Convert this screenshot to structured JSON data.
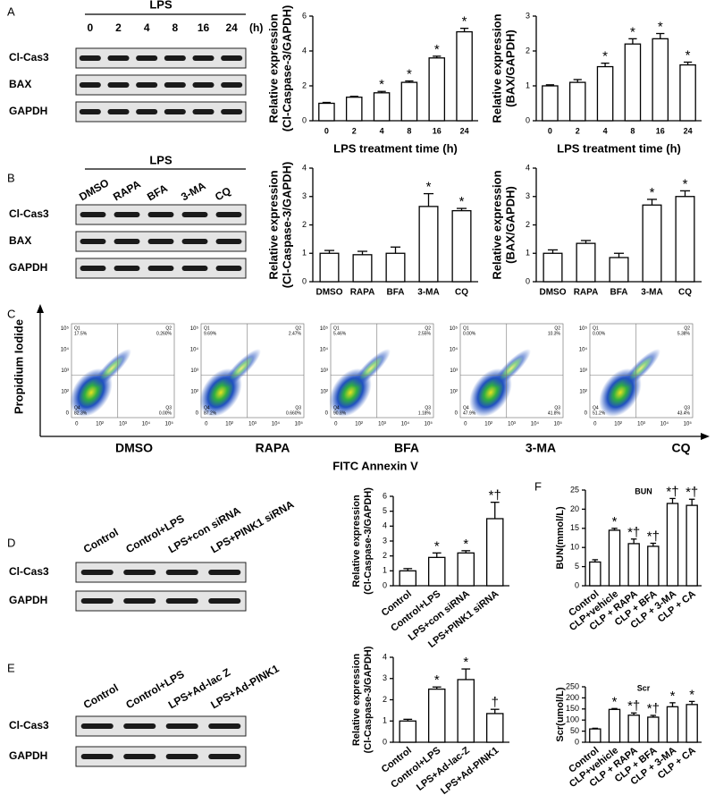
{
  "panels": [
    "A",
    "B",
    "C",
    "D",
    "E",
    "F"
  ],
  "chart_data": [
    {
      "type": "bar",
      "ylabel": [
        "Relative expression",
        "(Cl-Caspase-3/GAPDH)"
      ],
      "xlabel": "LPS treatment time (h)",
      "color": "#ffffff",
      "categories": [
        "0",
        "2",
        "4",
        "8",
        "16",
        "24"
      ],
      "values": [
        1.0,
        1.35,
        1.6,
        2.2,
        3.6,
        5.1
      ],
      "errors": [
        0.05,
        0.05,
        0.08,
        0.08,
        0.1,
        0.2
      ],
      "annotations": [
        null,
        null,
        "*",
        "*",
        "*",
        "*"
      ],
      "ylim": [
        0,
        6
      ],
      "yticks": [
        0,
        2,
        4,
        6
      ]
    },
    {
      "type": "bar",
      "ylabel": [
        "Relative expression",
        "(BAX/GAPDH)"
      ],
      "xlabel": "LPS treatment time (h)",
      "color": "#ffffff",
      "categories": [
        "0",
        "2",
        "4",
        "8",
        "16",
        "24"
      ],
      "values": [
        1.0,
        1.1,
        1.55,
        2.2,
        2.35,
        1.6
      ],
      "errors": [
        0.03,
        0.08,
        0.1,
        0.15,
        0.15,
        0.08
      ],
      "annotations": [
        null,
        null,
        "*",
        "*",
        "*",
        "*"
      ],
      "ylim": [
        0,
        3
      ],
      "yticks": [
        0,
        1,
        2,
        3
      ]
    },
    {
      "type": "bar",
      "ylabel": [
        "Relative expression",
        "(Cl-Caspase-3/GAPDH)"
      ],
      "color": "#ffffff",
      "categories": [
        "DMSO",
        "RAPA",
        "BFA",
        "3-MA",
        "CQ"
      ],
      "values": [
        1.0,
        0.95,
        1.0,
        2.65,
        2.5
      ],
      "errors": [
        0.1,
        0.12,
        0.22,
        0.45,
        0.08
      ],
      "annotations": [
        null,
        null,
        null,
        "*",
        "*"
      ],
      "ylim": [
        0,
        4
      ],
      "yticks": [
        0,
        1,
        2,
        3,
        4
      ]
    },
    {
      "type": "bar",
      "ylabel": [
        "Relative expression",
        "(BAX/GAPDH)"
      ],
      "color": "#ffffff",
      "categories": [
        "DMSO",
        "RAPA",
        "BFA",
        "3-MA",
        "CQ"
      ],
      "values": [
        1.0,
        1.35,
        0.85,
        2.7,
        3.0
      ],
      "errors": [
        0.12,
        0.1,
        0.15,
        0.2,
        0.2
      ],
      "annotations": [
        null,
        null,
        null,
        "*",
        "*"
      ],
      "ylim": [
        0,
        4
      ],
      "yticks": [
        0,
        1,
        2,
        3,
        4
      ]
    },
    {
      "type": "bar",
      "ylabel": [
        "Relative expression",
        "(Cl-Caspase-3/GAPDH)"
      ],
      "color": "#ffffff",
      "categories": [
        "Control",
        "Control+LPS",
        "LPS+con siRNA",
        "LPS+PINK1 siRNA"
      ],
      "values": [
        1.0,
        1.9,
        2.2,
        4.5
      ],
      "errors": [
        0.15,
        0.3,
        0.15,
        1.1
      ],
      "annotations": [
        null,
        "*",
        "*",
        "*†"
      ],
      "ylim": [
        0,
        6
      ],
      "yticks": [
        0,
        1,
        2,
        3,
        4,
        5,
        6
      ]
    },
    {
      "type": "bar",
      "ylabel": [
        "Relative expression",
        "(Cl-Caspase-3/GAPDH)"
      ],
      "color": "#ffffff",
      "categories": [
        "Control",
        "Control+LPS",
        "LPS+Ad-lac-Z",
        "LPS+Ad-PINK1"
      ],
      "values": [
        1.0,
        2.5,
        2.95,
        1.35
      ],
      "errors": [
        0.08,
        0.1,
        0.5,
        0.2
      ],
      "annotations": [
        null,
        "*",
        "*",
        "†"
      ],
      "ylim": [
        0,
        4
      ],
      "yticks": [
        0,
        1,
        2,
        3,
        4
      ]
    },
    {
      "type": "bar",
      "title": "BUN",
      "ylabel": [
        "BUN(mmol/L)"
      ],
      "color": "#ffffff",
      "categories": [
        "Control",
        "CLP+vehicle",
        "CLP + RAPA",
        "CLP + BFA",
        "CLP + 3-MA",
        "CLP + CA"
      ],
      "values": [
        6.2,
        14.5,
        11,
        10.3,
        21.5,
        21
      ],
      "errors": [
        0.6,
        0.5,
        1.2,
        0.8,
        1.3,
        1.6
      ],
      "annotations": [
        null,
        "*",
        "*†",
        "*†",
        "*†",
        "*†"
      ],
      "ylim": [
        0,
        25
      ],
      "yticks": [
        0,
        5,
        10,
        15,
        20,
        25
      ]
    },
    {
      "type": "bar",
      "title": "Scr",
      "ylabel": [
        "Scr(umol/L)"
      ],
      "color": "#ffffff",
      "categories": [
        "Control",
        "CLP+vehicle",
        "CLP + RAPA",
        "CLP + BFA",
        "CLP + 3-MA",
        "CLP + CA"
      ],
      "values": [
        60,
        148,
        122,
        113,
        160,
        170
      ],
      "errors": [
        3,
        4,
        10,
        8,
        18,
        14
      ],
      "annotations": [
        null,
        "*",
        "*†",
        "*†",
        "*",
        "*"
      ],
      "ylim": [
        0,
        250
      ],
      "yticks": [
        0,
        50,
        100,
        150,
        200,
        250
      ]
    }
  ],
  "blots": [
    {
      "header": "LPS",
      "lanes": [
        "0",
        "2",
        "4",
        "8",
        "16",
        "24"
      ],
      "unit": "(h)",
      "rows": [
        "Cl-Cas3",
        "BAX",
        "GAPDH"
      ]
    },
    {
      "header": "LPS",
      "lanes": [
        "DMSO",
        "RAPA",
        "BFA",
        "3-MA",
        "CQ"
      ],
      "rows": [
        "Cl-Cas3",
        "BAX",
        "GAPDH"
      ]
    },
    {
      "lanes": [
        "Control",
        "Control+LPS",
        "LPS+con siRNA",
        "LPS+PINK1 siRNA"
      ],
      "rows": [
        "Cl-Cas3",
        "GAPDH"
      ]
    },
    {
      "lanes": [
        "Control",
        "Control+LPS",
        "LPS+Ad-lac Z",
        "LPS+Ad-PINK1"
      ],
      "rows": [
        "Cl-Cas3",
        "GAPDH"
      ]
    }
  ],
  "flow": {
    "ylabel": "Propidium Iodide",
    "xlabel": "FITC Annexin V",
    "ticks": [
      "0",
      "10²",
      "10³",
      "10⁴",
      "10⁵"
    ],
    "quadrants": [
      "Q1",
      "Q2",
      "Q3",
      "Q4"
    ],
    "plots": [
      {
        "name": "DMSO",
        "percents": [
          "17.5%",
          "0.260%",
          "0.00%",
          "82.3%"
        ]
      },
      {
        "name": "RAPA",
        "percents": [
          "9.69%",
          "2.47%",
          "0.660%",
          "87.2%"
        ]
      },
      {
        "name": "BFA",
        "percents": [
          "5.46%",
          "2.55%",
          "1.18%",
          "90.8%"
        ]
      },
      {
        "name": "3-MA",
        "percents": [
          "0.00%",
          "10.3%",
          "41.8%",
          "47.9%"
        ]
      },
      {
        "name": "CQ",
        "percents": [
          "0.00%",
          "5.38%",
          "43.4%",
          "51.2%"
        ]
      }
    ]
  }
}
